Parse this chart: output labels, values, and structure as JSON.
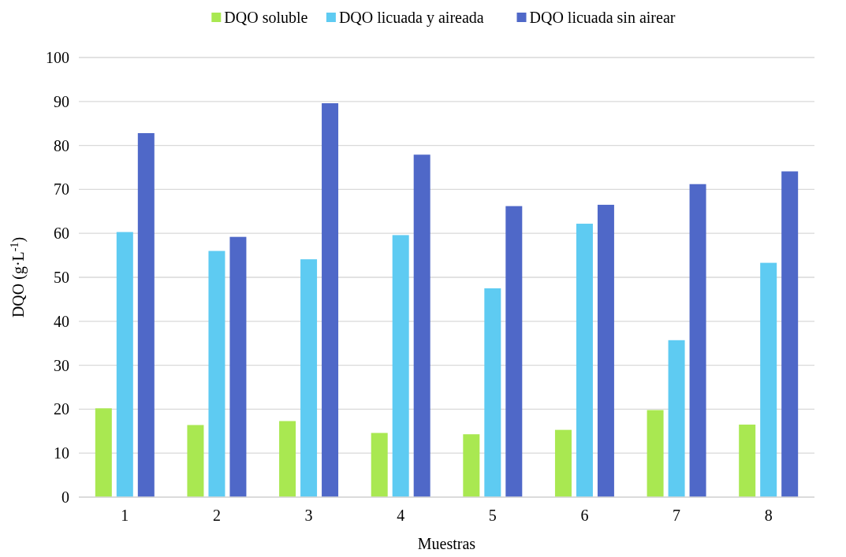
{
  "chart_data": {
    "type": "bar",
    "xlabel": "Muestras",
    "ylabel": "DQO (g·L$^{-1}$)",
    "categories": [
      "1",
      "2",
      "3",
      "4",
      "5",
      "6",
      "7",
      "8"
    ],
    "series": [
      {
        "name": "DQO soluble",
        "color": "#a9e851",
        "values": [
          20.2,
          16.4,
          17.3,
          14.6,
          14.3,
          15.3,
          19.8,
          16.5
        ]
      },
      {
        "name": "DQO licuada y aireada",
        "color": "#5ecbf2",
        "values": [
          60.3,
          56.0,
          54.1,
          59.6,
          47.5,
          62.2,
          35.7,
          53.3
        ]
      },
      {
        "name": "DQO licuada sin airear",
        "color": "#4f68c8",
        "values": [
          82.8,
          59.2,
          89.6,
          77.9,
          66.2,
          66.5,
          71.2,
          74.1
        ]
      }
    ],
    "ylim": [
      0,
      100
    ],
    "yticks": [
      0,
      10,
      20,
      30,
      40,
      50,
      60,
      70,
      80,
      90,
      100
    ],
    "grid": "y",
    "legend": "top"
  }
}
